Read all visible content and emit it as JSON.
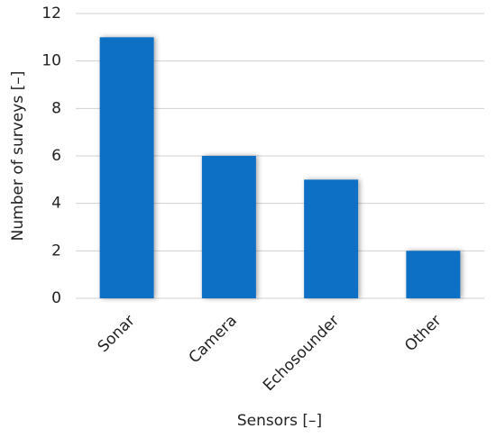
{
  "chart_data": {
    "type": "bar",
    "x_label": "Sensors [–]",
    "y_label": "Number of surveys [–]",
    "categories": [
      "Sonar",
      "Camera",
      "Echosounder",
      "Other"
    ],
    "values": [
      11,
      6,
      5,
      2
    ],
    "color": "#0a70c4",
    "ylim": [
      0,
      12
    ],
    "yticks": [
      0,
      2,
      4,
      6,
      8,
      10,
      12
    ],
    "grid": true
  }
}
